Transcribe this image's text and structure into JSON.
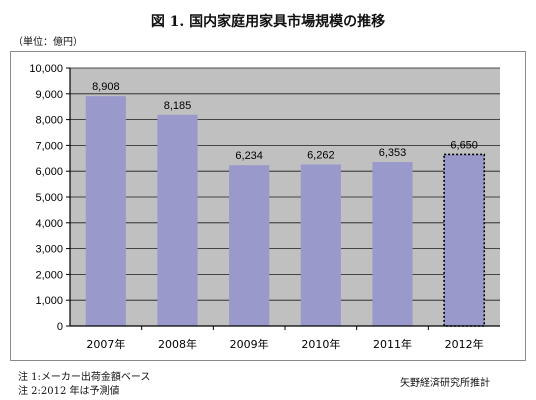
{
  "title": "図 1. 国内家庭用家具市場規模の推移",
  "unit_label": "（単位：億円）",
  "notes": [
    "注 1:メーカー出荷金額ベース",
    "注 2:2012 年は予測値"
  ],
  "source": "矢野経済研究所推計",
  "colors": {
    "bar": "#9999cc",
    "plot_background": "#c0c0c0",
    "forecast_bar_border": "#000000"
  },
  "chart_data": {
    "type": "bar",
    "title": "図 1. 国内家庭用家具市場規模の推移",
    "xlabel": "",
    "ylabel": "",
    "categories": [
      "2007年",
      "2008年",
      "2009年",
      "2010年",
      "2011年",
      "2012年"
    ],
    "values": [
      8908,
      8185,
      6234,
      6262,
      6353,
      6650
    ],
    "data_labels": [
      "8,908",
      "8,185",
      "6,234",
      "6,262",
      "6,353",
      "6,650"
    ],
    "yticks": [
      "0",
      "1,000",
      "2,000",
      "3,000",
      "4,000",
      "5,000",
      "6,000",
      "7,000",
      "8,000",
      "9,000",
      "10,000"
    ],
    "ylim": [
      0,
      10000
    ],
    "forecast_index": 5,
    "grid": true,
    "legend": "none"
  }
}
